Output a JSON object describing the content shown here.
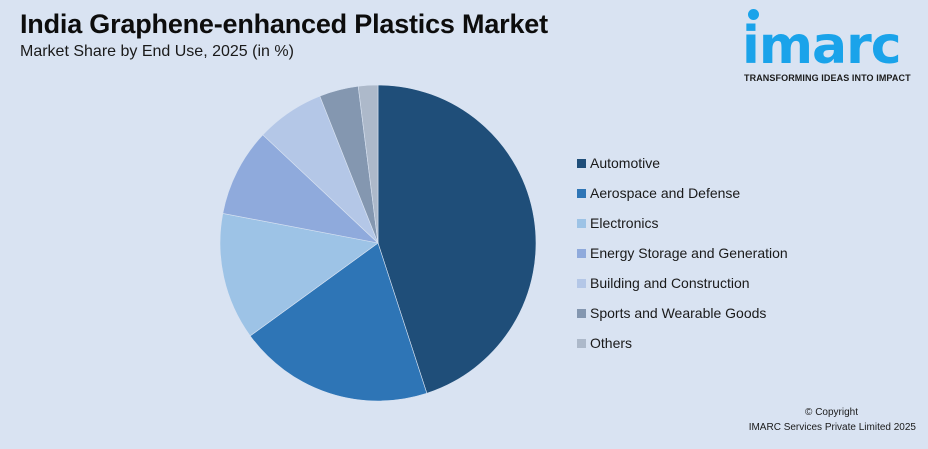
{
  "header": {
    "title": "India Graphene-enhanced Plastics Market",
    "subtitle": "Market Share by End Use, 2025 (in %)"
  },
  "logo": {
    "wordmark": "imarc",
    "tagline": "TRANSFORMING IDEAS INTO IMPACT",
    "color": "#1aa3ea"
  },
  "footer": {
    "copyright": "© Copyright",
    "company": "IMARC Services Private Limited 2025"
  },
  "chart_data": {
    "type": "pie",
    "title": "India Graphene-enhanced Plastics Market",
    "subtitle": "Market Share by End Use, 2025 (in %)",
    "categories": [
      "Automotive",
      "Aerospace and Defense",
      "Electronics",
      "Energy Storage and Generation",
      "Building and Construction",
      "Sports and Wearable Goods",
      "Others"
    ],
    "values": [
      45,
      20,
      13,
      9,
      7,
      4,
      2
    ],
    "colors": [
      "#1f4e79",
      "#2e75b6",
      "#9dc3e6",
      "#8faadc",
      "#b4c7e7",
      "#8497b0",
      "#adb9ca"
    ],
    "legend_position": "right",
    "start_angle_deg": 0,
    "direction": "clockwise"
  }
}
